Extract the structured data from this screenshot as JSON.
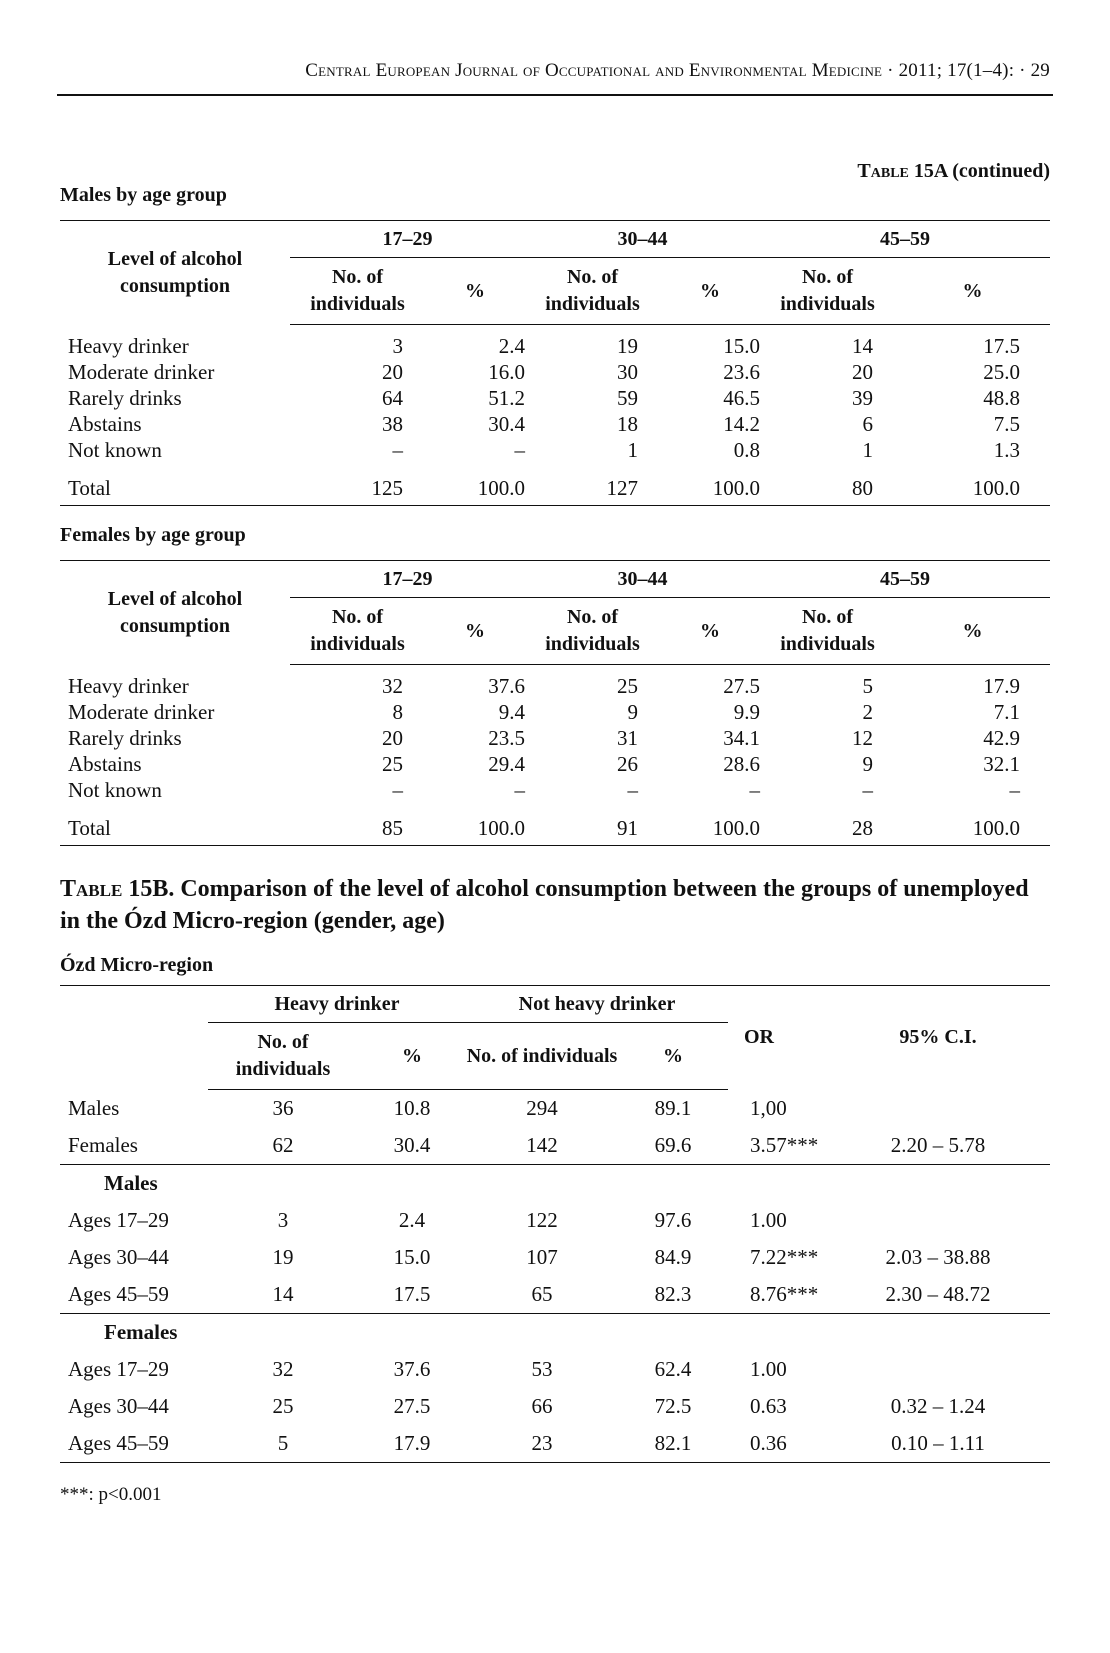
{
  "running_head": "Central European Journal of Occupational and Environmental Medicine · 2011; 17(1–4): · 29",
  "table15a": {
    "label_sc": "Table",
    "label_rest": "15A (continued)",
    "col_level": "Level of alcohol consumption",
    "col_no": "No. of individuals",
    "col_pct": "%",
    "age_groups": [
      "17–29",
      "30–44",
      "45–59"
    ],
    "males": {
      "title": "Males by age group",
      "rows": [
        {
          "label": "Heavy drinker",
          "cells": [
            "3",
            "2.4",
            "19",
            "15.0",
            "14",
            "17.5"
          ]
        },
        {
          "label": "Moderate drinker",
          "cells": [
            "20",
            "16.0",
            "30",
            "23.6",
            "20",
            "25.0"
          ]
        },
        {
          "label": "Rarely drinks",
          "cells": [
            "64",
            "51.2",
            "59",
            "46.5",
            "39",
            "48.8"
          ]
        },
        {
          "label": "Abstains",
          "cells": [
            "38",
            "30.4",
            "18",
            "14.2",
            "6",
            "7.5"
          ]
        },
        {
          "label": "Not known",
          "cells": [
            "–",
            "–",
            "1",
            "0.8",
            "1",
            "1.3"
          ]
        }
      ],
      "total": {
        "label": "Total",
        "cells": [
          "125",
          "100.0",
          "127",
          "100.0",
          "80",
          "100.0"
        ]
      }
    },
    "females": {
      "title": "Females by age group",
      "rows": [
        {
          "label": "Heavy drinker",
          "cells": [
            "32",
            "37.6",
            "25",
            "27.5",
            "5",
            "17.9"
          ]
        },
        {
          "label": "Moderate drinker",
          "cells": [
            "8",
            "9.4",
            "9",
            "9.9",
            "2",
            "7.1"
          ]
        },
        {
          "label": "Rarely drinks",
          "cells": [
            "20",
            "23.5",
            "31",
            "34.1",
            "12",
            "42.9"
          ]
        },
        {
          "label": "Abstains",
          "cells": [
            "25",
            "29.4",
            "26",
            "28.6",
            "9",
            "32.1"
          ]
        },
        {
          "label": "Not known",
          "cells": [
            "–",
            "–",
            "–",
            "–",
            "–",
            "–"
          ]
        }
      ],
      "total": {
        "label": "Total",
        "cells": [
          "85",
          "100.0",
          "91",
          "100.0",
          "28",
          "100.0"
        ]
      }
    }
  },
  "table15b": {
    "title_sc": "Table",
    "title_rest": "15B. Comparison of the level of alcohol consumption between the groups of unemployed in the Ózd Micro-region (gender, age)",
    "subtitle": "Ózd Micro-region",
    "col_heavy": "Heavy drinker",
    "col_not_heavy": "Not heavy drinker",
    "col_no": "No. of individuals",
    "col_pct": "%",
    "col_or": "OR",
    "col_ci": "95% C.I.",
    "gender_rows": [
      {
        "label": "Males",
        "cells": [
          "36",
          "10.8",
          "294",
          "89.1",
          "1,00",
          ""
        ]
      },
      {
        "label": "Females",
        "cells": [
          "62",
          "30.4",
          "142",
          "69.6",
          "3.57***",
          "2.20 – 5.78"
        ]
      }
    ],
    "males_heading": "Males",
    "males_rows": [
      {
        "label": "Ages 17–29",
        "cells": [
          "3",
          "2.4",
          "122",
          "97.6",
          "1.00",
          ""
        ]
      },
      {
        "label": "Ages 30–44",
        "cells": [
          "19",
          "15.0",
          "107",
          "84.9",
          "7.22***",
          "2.03 – 38.88"
        ]
      },
      {
        "label": "Ages 45–59",
        "cells": [
          "14",
          "17.5",
          "65",
          "82.3",
          "8.76***",
          "2.30 – 48.72"
        ]
      }
    ],
    "females_heading": "Females",
    "females_rows": [
      {
        "label": "Ages 17–29",
        "cells": [
          "32",
          "37.6",
          "53",
          "62.4",
          "1.00",
          ""
        ]
      },
      {
        "label": "Ages 30–44",
        "cells": [
          "25",
          "27.5",
          "66",
          "72.5",
          "0.63",
          "0.32 – 1.24"
        ]
      },
      {
        "label": "Ages 45–59",
        "cells": [
          "5",
          "17.9",
          "23",
          "82.1",
          "0.36",
          "0.10 – 1.11"
        ]
      }
    ],
    "footnote": "***: p<0.001"
  }
}
